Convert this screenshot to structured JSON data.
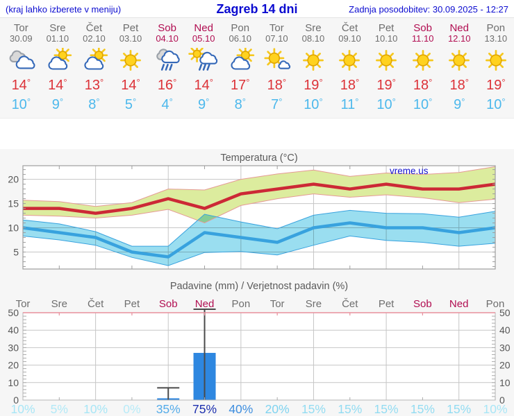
{
  "header": {
    "left_note": "(kraj lahko izberete v meniju)",
    "title": "Zagreb 14 dni",
    "updated": "Zadnja posodobitev: 30.09.2025 - 12:27"
  },
  "forecast": {
    "degree_symbol": "°",
    "days": [
      {
        "name": "Tor",
        "date": "30.09",
        "weekend": false,
        "icon": "cloudy",
        "high": 14,
        "low": 10
      },
      {
        "name": "Sre",
        "date": "01.10",
        "weekend": false,
        "icon": "sun-cloud",
        "high": 14,
        "low": 9
      },
      {
        "name": "Čet",
        "date": "02.10",
        "weekend": false,
        "icon": "sun-cloud",
        "high": 13,
        "low": 8
      },
      {
        "name": "Pet",
        "date": "03.10",
        "weekend": false,
        "icon": "sunny",
        "high": 14,
        "low": 5
      },
      {
        "name": "Sob",
        "date": "04.10",
        "weekend": true,
        "icon": "rain",
        "high": 16,
        "low": 4
      },
      {
        "name": "Ned",
        "date": "05.10",
        "weekend": true,
        "icon": "sun-rain",
        "high": 14,
        "low": 9
      },
      {
        "name": "Pon",
        "date": "06.10",
        "weekend": false,
        "icon": "sun-cloud",
        "high": 17,
        "low": 8
      },
      {
        "name": "Tor",
        "date": "07.10",
        "weekend": false,
        "icon": "sun-small-cloud",
        "high": 18,
        "low": 7
      },
      {
        "name": "Sre",
        "date": "08.10",
        "weekend": false,
        "icon": "sunny",
        "high": 19,
        "low": 10
      },
      {
        "name": "Čet",
        "date": "09.10",
        "weekend": false,
        "icon": "sunny",
        "high": 18,
        "low": 11
      },
      {
        "name": "Pet",
        "date": "10.10",
        "weekend": false,
        "icon": "sunny",
        "high": 19,
        "low": 10
      },
      {
        "name": "Sob",
        "date": "11.10",
        "weekend": true,
        "icon": "sunny",
        "high": 18,
        "low": 10
      },
      {
        "name": "Ned",
        "date": "12.10",
        "weekend": true,
        "icon": "sunny",
        "high": 18,
        "low": 9
      },
      {
        "name": "Pon",
        "date": "13.10",
        "weekend": false,
        "icon": "sunny",
        "high": 19,
        "low": 10
      }
    ]
  },
  "colors": {
    "link_blue": "#0b0bd0",
    "weekday": "#6e6e6e",
    "weekend": "#b10d51",
    "high_temp": "#dc3238",
    "low_temp": "#4cb8ec",
    "bar_blue": "#2e87e0",
    "grid": "#c6c6c6",
    "frame": "#9e9e9e",
    "precip_frame_pink": "#e88f9c",
    "axis_text": "#555555",
    "title_text": "#5a5a5a"
  },
  "chart_data": [
    {
      "type": "area",
      "title": "Temperatura (°C)",
      "watermark": "vreme.us",
      "categories": [
        "Tor 30.09",
        "Sre 01.10",
        "Čet 02.10",
        "Pet 03.10",
        "Sob 04.10",
        "Ned 05.10",
        "Pon 06.10",
        "Tor 07.10",
        "Sre 08.10",
        "Čet 09.10",
        "Pet 10.10",
        "Sob 11.10",
        "Ned 12.10",
        "Pon 13.10"
      ],
      "ylim": [
        1.5,
        22.8
      ],
      "yticks": [
        5,
        10,
        15,
        20
      ],
      "grid": true,
      "legend": "none",
      "series": [
        {
          "name": "max temp",
          "color": "#cc2936",
          "values": [
            14,
            14,
            13,
            14,
            16,
            14,
            17,
            18,
            19,
            18,
            19,
            18,
            18,
            19
          ]
        },
        {
          "name": "min temp",
          "color": "#38a2de",
          "values": [
            10,
            9,
            8,
            5,
            4,
            9,
            8,
            7,
            10,
            11,
            10,
            10,
            9,
            10
          ]
        }
      ],
      "bands": [
        {
          "name": "max range",
          "fill": "#dcec9e",
          "edge": "#e59a95",
          "upper": [
            15.7,
            15.4,
            14.4,
            15.2,
            18.0,
            17.8,
            20.0,
            21.1,
            21.9,
            20.6,
            21.3,
            21.0,
            21.4,
            22.6
          ],
          "lower": [
            12.6,
            12.4,
            12.0,
            12.6,
            13.8,
            11.0,
            14.6,
            16.0,
            17.0,
            16.3,
            16.8,
            16.2,
            15.2,
            15.9
          ]
        },
        {
          "name": "min range",
          "fill": "#9adef0",
          "edge": "#38a2de",
          "upper": [
            11.6,
            10.8,
            9.2,
            6.2,
            6.2,
            12.8,
            11.2,
            9.8,
            12.6,
            13.6,
            13.0,
            12.9,
            12.2,
            13.4
          ],
          "lower": [
            8.3,
            7.5,
            6.4,
            3.9,
            2.2,
            4.9,
            5.1,
            4.4,
            6.4,
            8.3,
            7.4,
            7.0,
            6.2,
            6.8
          ]
        }
      ]
    },
    {
      "type": "bar",
      "title": "Padavine (mm) / Verjetnost padavin (%)",
      "categories": [
        "Tor",
        "Sre",
        "Čet",
        "Pet",
        "Sob",
        "Ned",
        "Pon",
        "Tor",
        "Sre",
        "Čet",
        "Pet",
        "Sob",
        "Ned",
        "Pon"
      ],
      "weekend_indices": [
        4,
        5,
        11,
        12
      ],
      "values": [
        0,
        0,
        0,
        0,
        1,
        27,
        0,
        0,
        0,
        0,
        0,
        0,
        0,
        0
      ],
      "whiskers": [
        null,
        null,
        null,
        null,
        {
          "low": 0,
          "high": 7
        },
        {
          "low": 3.3,
          "high": 52
        },
        null,
        null,
        null,
        null,
        null,
        null,
        null,
        null
      ],
      "ylim": [
        0,
        50
      ],
      "yticks": [
        0,
        10,
        20,
        30,
        40,
        50
      ],
      "ylabels_both_sides": true,
      "bar_color": "#2e87e0",
      "probabilities": [
        {
          "label": "10%",
          "color": "#a8e6f6"
        },
        {
          "label": "5%",
          "color": "#b2e9f7"
        },
        {
          "label": "10%",
          "color": "#a8e6f6"
        },
        {
          "label": "0%",
          "color": "#b8ebf8"
        },
        {
          "label": "35%",
          "color": "#55ace9"
        },
        {
          "label": "75%",
          "color": "#1c2fae"
        },
        {
          "label": "40%",
          "color": "#3e8edf"
        },
        {
          "label": "20%",
          "color": "#7fd3f0"
        },
        {
          "label": "15%",
          "color": "#93dcf2"
        },
        {
          "label": "15%",
          "color": "#93dcf2"
        },
        {
          "label": "15%",
          "color": "#93dcf2"
        },
        {
          "label": "15%",
          "color": "#93dcf2"
        },
        {
          "label": "15%",
          "color": "#93dcf2"
        },
        {
          "label": "10%",
          "color": "#a8e6f6"
        }
      ]
    }
  ]
}
